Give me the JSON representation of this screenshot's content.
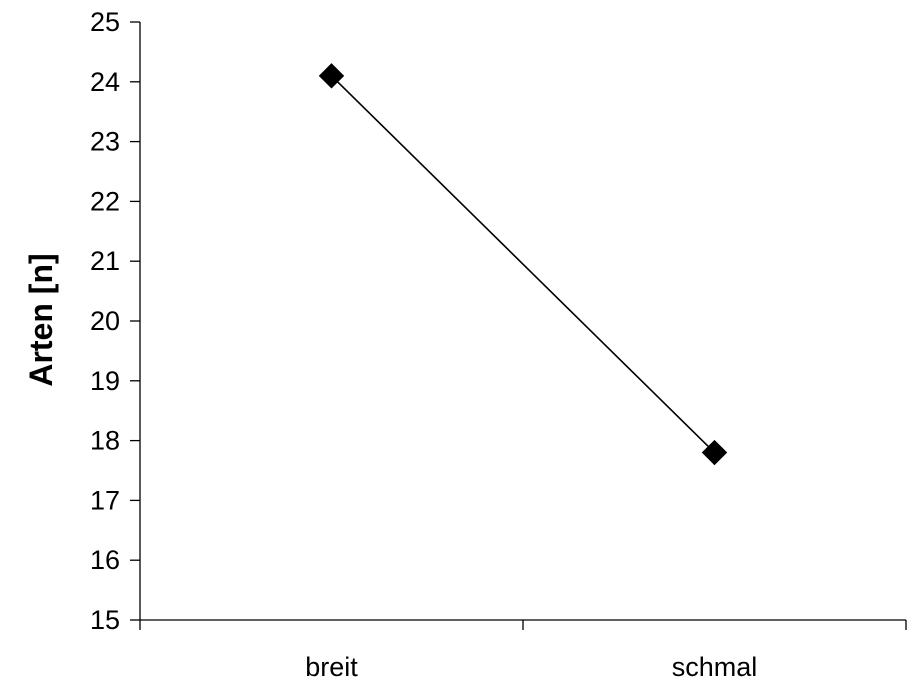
{
  "chart_data": {
    "type": "line",
    "title": "",
    "xlabel": "",
    "ylabel": "Arten [n]",
    "categories": [
      "breit",
      "schmal"
    ],
    "series": [
      {
        "values": [
          24.1,
          17.8
        ],
        "marker": "diamond",
        "color": "#000000"
      }
    ],
    "ylim": [
      15,
      25
    ],
    "yticks": [
      15,
      16,
      17,
      18,
      19,
      20,
      21,
      22,
      23,
      24,
      25
    ],
    "grid": false,
    "legend": "none"
  }
}
